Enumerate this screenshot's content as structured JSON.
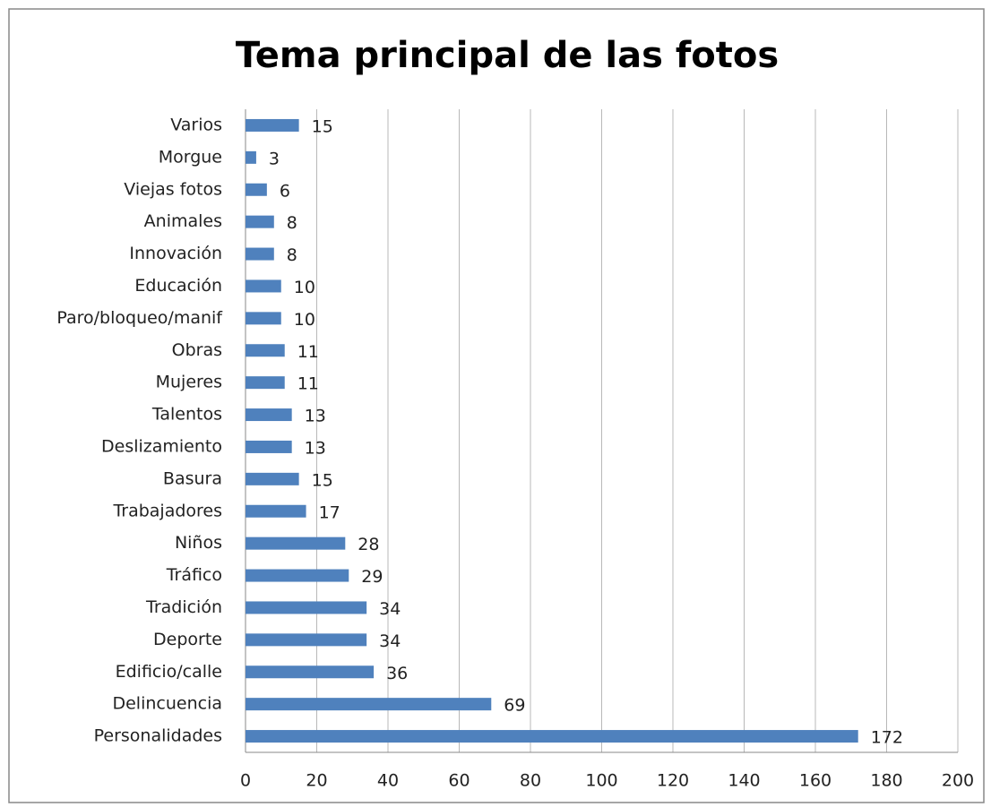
{
  "chart_data": {
    "type": "bar",
    "orientation": "horizontal",
    "title": "Tema principal de las fotos",
    "categories": [
      "Varios",
      "Morgue",
      "Viejas fotos",
      "Animales",
      "Innovación",
      "Educación",
      "Paro/bloqueo/manif",
      "Obras",
      "Mujeres",
      "Talentos",
      "Deslizamiento",
      "Basura",
      "Trabajadores",
      "Niños",
      "Tráfico",
      "Tradición",
      "Deporte",
      "Edificio/calle",
      "Delincuencia",
      "Personalidades"
    ],
    "values": [
      15,
      3,
      6,
      8,
      8,
      10,
      10,
      11,
      11,
      13,
      13,
      15,
      17,
      28,
      29,
      34,
      34,
      36,
      69,
      172
    ],
    "color": "#4f81bd",
    "xlim": [
      0,
      200
    ],
    "xticks": [
      0,
      20,
      40,
      60,
      80,
      100,
      120,
      140,
      160,
      180,
      200
    ],
    "grid": true
  }
}
